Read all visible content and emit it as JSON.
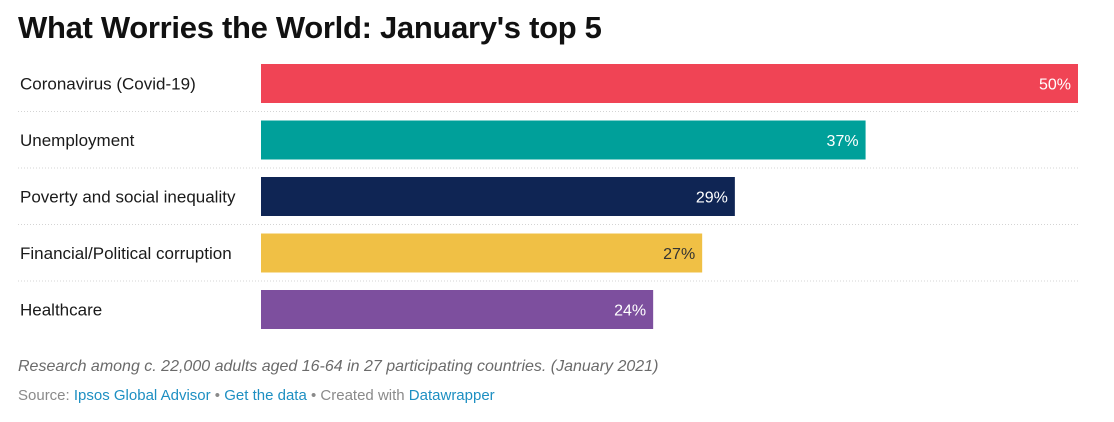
{
  "title": "What Worries the World: January's top 5",
  "chart_data": {
    "type": "bar",
    "orientation": "horizontal",
    "categories": [
      "Coronavirus (Covid-19)",
      "Unemployment",
      "Poverty and social inequality",
      "Financial/Political corruption",
      "Healthcare"
    ],
    "values": [
      50,
      37,
      29,
      27,
      24
    ],
    "value_labels": [
      "50%",
      "37%",
      "29%",
      "27%",
      "24%"
    ],
    "colors": [
      "#f04455",
      "#00a09a",
      "#0f2554",
      "#f0c045",
      "#7d4f9e"
    ],
    "label_colors": [
      "#ffffff",
      "#ffffff",
      "#ffffff",
      "#333333",
      "#ffffff"
    ],
    "xlim": [
      0,
      50
    ],
    "grid": false,
    "row_separators": "dotted"
  },
  "notes": "Research among c. 22,000 adults aged 16-64 in 27 participating countries. (January 2021)",
  "footer": {
    "source_prefix": "Source:",
    "source_link": "Ipsos Global Advisor",
    "separator": "•",
    "get_data": "Get the data",
    "created_with": "Created with",
    "datawrapper": "Datawrapper"
  }
}
